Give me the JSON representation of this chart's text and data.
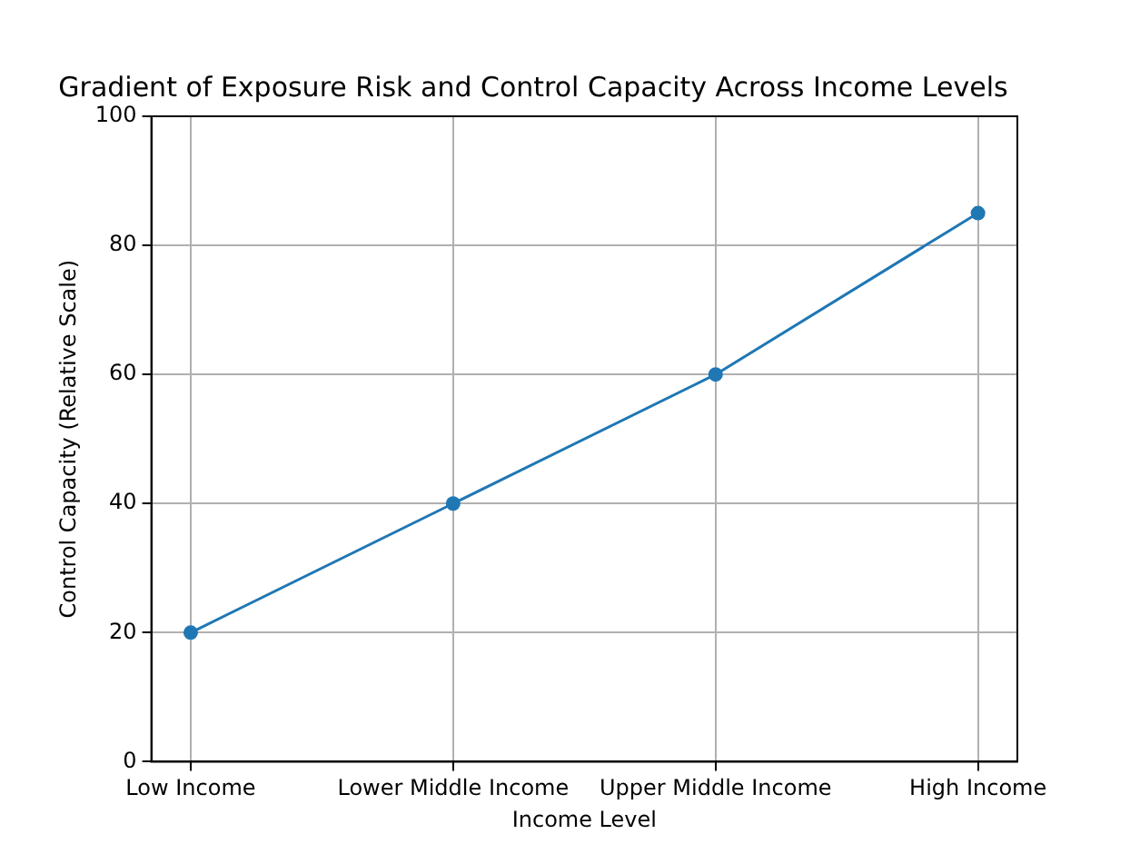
{
  "chart_data": {
    "type": "line",
    "title": "Gradient of Exposure Risk and Control Capacity Across Income Levels",
    "xlabel": "Income Level",
    "ylabel": "Control Capacity (Relative Scale)",
    "categories": [
      "Low Income",
      "Lower Middle Income",
      "Upper Middle Income",
      "High Income"
    ],
    "series": [
      {
        "color": "#1f77b4",
        "values": [
          20,
          40,
          60,
          85
        ]
      }
    ],
    "ylim": [
      0,
      100
    ],
    "yticks": [
      0,
      20,
      40,
      60,
      80,
      100
    ],
    "grid": true,
    "marker": "circle",
    "line_style": "solid"
  }
}
